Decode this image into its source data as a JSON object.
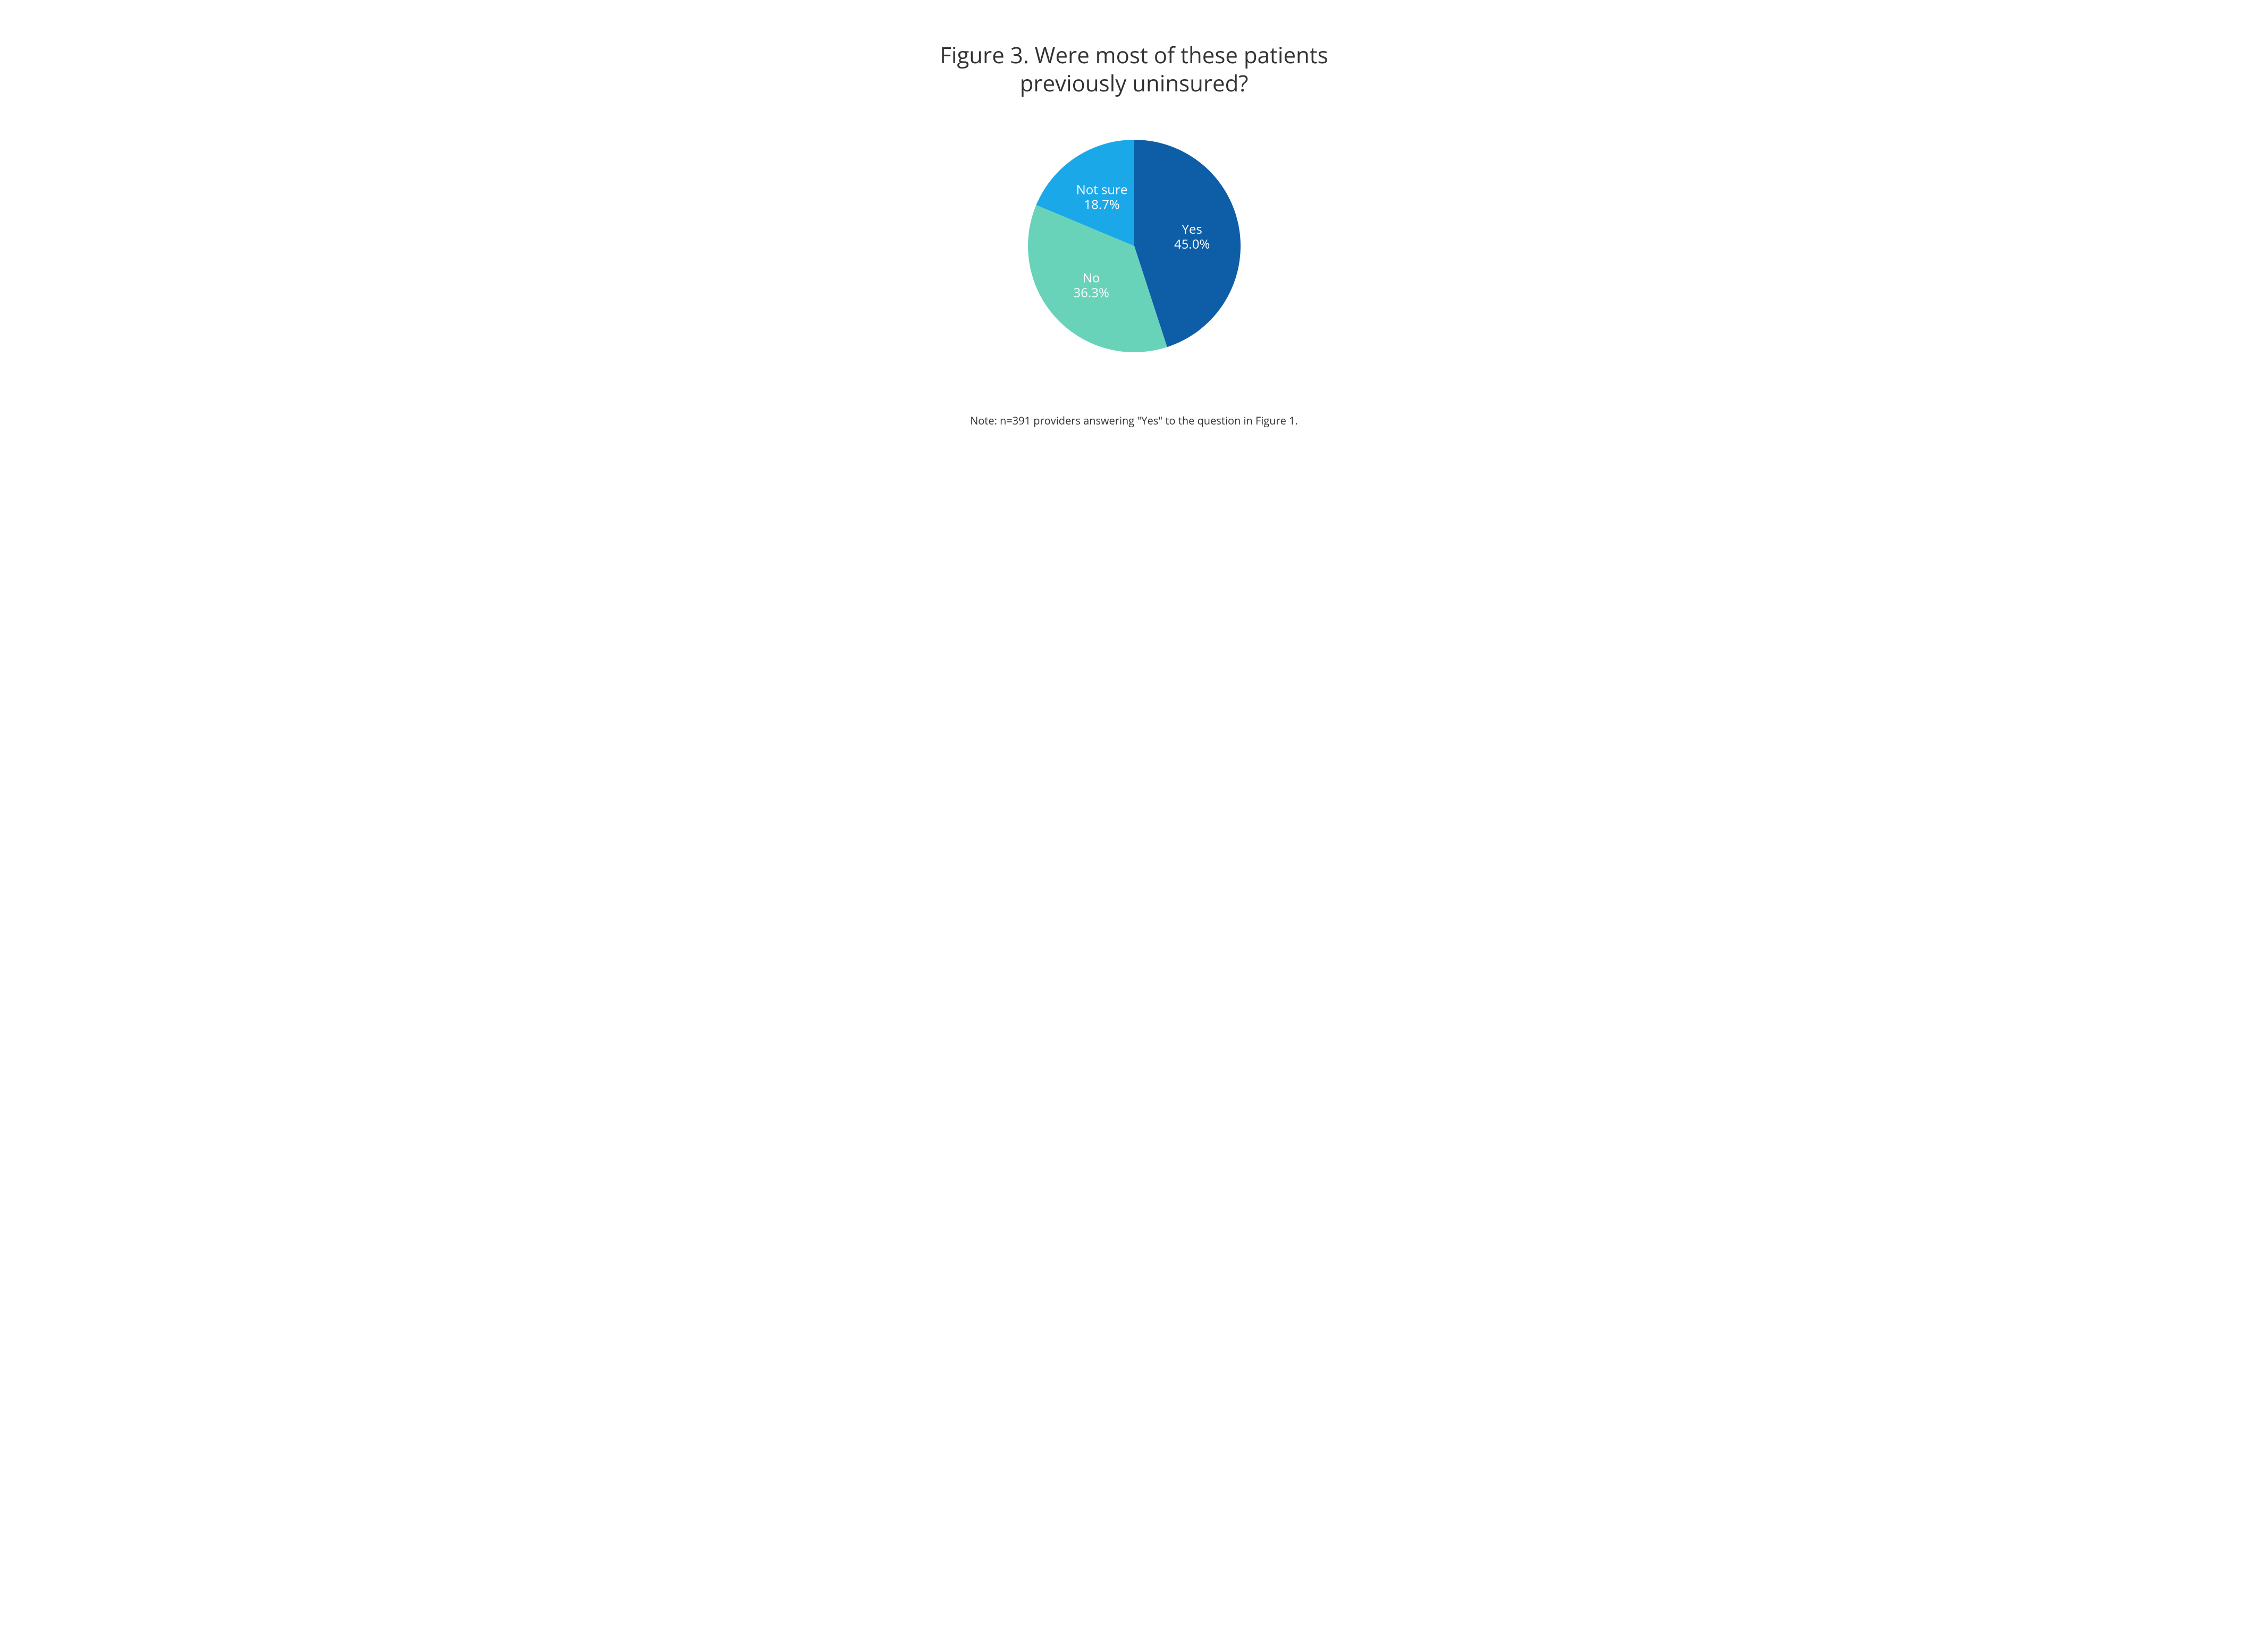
{
  "chart": {
    "type": "pie",
    "title": "Figure 3. Were most of these patients\npreviously uninsured?",
    "title_fontsize": 42,
    "title_color": "#333333",
    "background_color": "#ffffff",
    "radius": 200,
    "label_fontsize": 24,
    "label_color": "#ffffff",
    "start_angle_deg": 0,
    "direction": "clockwise",
    "slices": [
      {
        "label": "Yes",
        "value": 45.0,
        "percent_text": "45.0%",
        "color": "#0d5ea6"
      },
      {
        "label": "No",
        "value": 36.3,
        "percent_text": "36.3%",
        "color": "#69d3ba"
      },
      {
        "label": "Not sure",
        "value": 18.7,
        "percent_text": "18.7%",
        "color": "#1ba8e8"
      }
    ],
    "footnote": "Note: n=391 providers answering \"Yes\" to the question in Figure 1.",
    "footnote_fontsize": 20,
    "footnote_color": "#333333"
  }
}
